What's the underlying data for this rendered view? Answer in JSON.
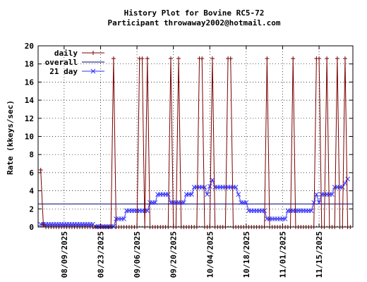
{
  "chart_data": {
    "type": "line",
    "title": "History Plot for Bovine RC5-72",
    "subtitle": "Participant throwaway2002@hotmail.com",
    "ylabel": "Rate (kkeys/sec)",
    "xlabel": "",
    "ylim": [
      0,
      20
    ],
    "yticks": [
      0,
      2,
      4,
      6,
      8,
      10,
      12,
      14,
      16,
      18,
      20
    ],
    "x_start": "2025-07-30",
    "x_end": "2025-11-28",
    "xtick_labels": [
      "08/09/2025",
      "08/23/2025",
      "09/06/2025",
      "09/20/2025",
      "10/04/2025",
      "10/18/2025",
      "11/01/2025",
      "11/15/2025"
    ],
    "grid": true,
    "legend_position": "top-left",
    "series": [
      {
        "name": "daily",
        "color": "#7a0000",
        "marker": "plus",
        "spike_value": 18.6,
        "spike_dates": [
          "2025-08-28",
          "2025-09-07",
          "2025-09-08",
          "2025-09-10",
          "2025-09-19",
          "2025-09-22",
          "2025-09-30",
          "2025-10-01",
          "2025-10-05",
          "2025-10-11",
          "2025-10-12",
          "2025-10-26",
          "2025-11-05",
          "2025-11-14",
          "2025-11-15",
          "2025-11-18",
          "2025-11-22",
          "2025-11-25"
        ],
        "other_points": [
          [
            "2025-07-31",
            6.3
          ],
          [
            "2025-08-01",
            0.3
          ]
        ],
        "baseline_value": 0
      },
      {
        "name": "overall",
        "color": "#00007a",
        "value": 2.55
      },
      {
        "name": "21 day",
        "color": "#3333ff",
        "marker": "x",
        "points": [
          [
            "2025-07-31",
            0.3
          ],
          [
            "2025-08-20",
            0.3
          ],
          [
            "2025-08-21",
            0.05
          ],
          [
            "2025-08-28",
            0.05
          ],
          [
            "2025-08-29",
            0.9
          ],
          [
            "2025-09-01",
            0.9
          ],
          [
            "2025-09-02",
            1.8
          ],
          [
            "2025-09-10",
            1.8
          ],
          [
            "2025-09-11",
            2.7
          ],
          [
            "2025-09-13",
            2.7
          ],
          [
            "2025-09-14",
            3.6
          ],
          [
            "2025-09-18",
            3.6
          ],
          [
            "2025-09-19",
            2.7
          ],
          [
            "2025-09-24",
            2.7
          ],
          [
            "2025-09-25",
            3.6
          ],
          [
            "2025-09-27",
            3.6
          ],
          [
            "2025-09-28",
            4.4
          ],
          [
            "2025-10-02",
            4.4
          ],
          [
            "2025-10-03",
            3.6
          ],
          [
            "2025-10-04",
            4.5
          ],
          [
            "2025-10-05",
            5.2
          ],
          [
            "2025-10-06",
            4.4
          ],
          [
            "2025-10-14",
            4.4
          ],
          [
            "2025-10-15",
            3.6
          ],
          [
            "2025-10-16",
            2.7
          ],
          [
            "2025-10-18",
            2.7
          ],
          [
            "2025-10-19",
            1.8
          ],
          [
            "2025-10-25",
            1.8
          ],
          [
            "2025-10-26",
            0.9
          ],
          [
            "2025-11-02",
            0.9
          ],
          [
            "2025-11-03",
            1.8
          ],
          [
            "2025-11-12",
            1.8
          ],
          [
            "2025-11-13",
            2.7
          ],
          [
            "2025-11-14",
            3.6
          ],
          [
            "2025-11-15",
            2.7
          ],
          [
            "2025-11-16",
            3.6
          ],
          [
            "2025-11-20",
            3.6
          ],
          [
            "2025-11-21",
            4.4
          ],
          [
            "2025-11-24",
            4.4
          ],
          [
            "2025-11-26",
            5.3
          ]
        ]
      }
    ]
  }
}
